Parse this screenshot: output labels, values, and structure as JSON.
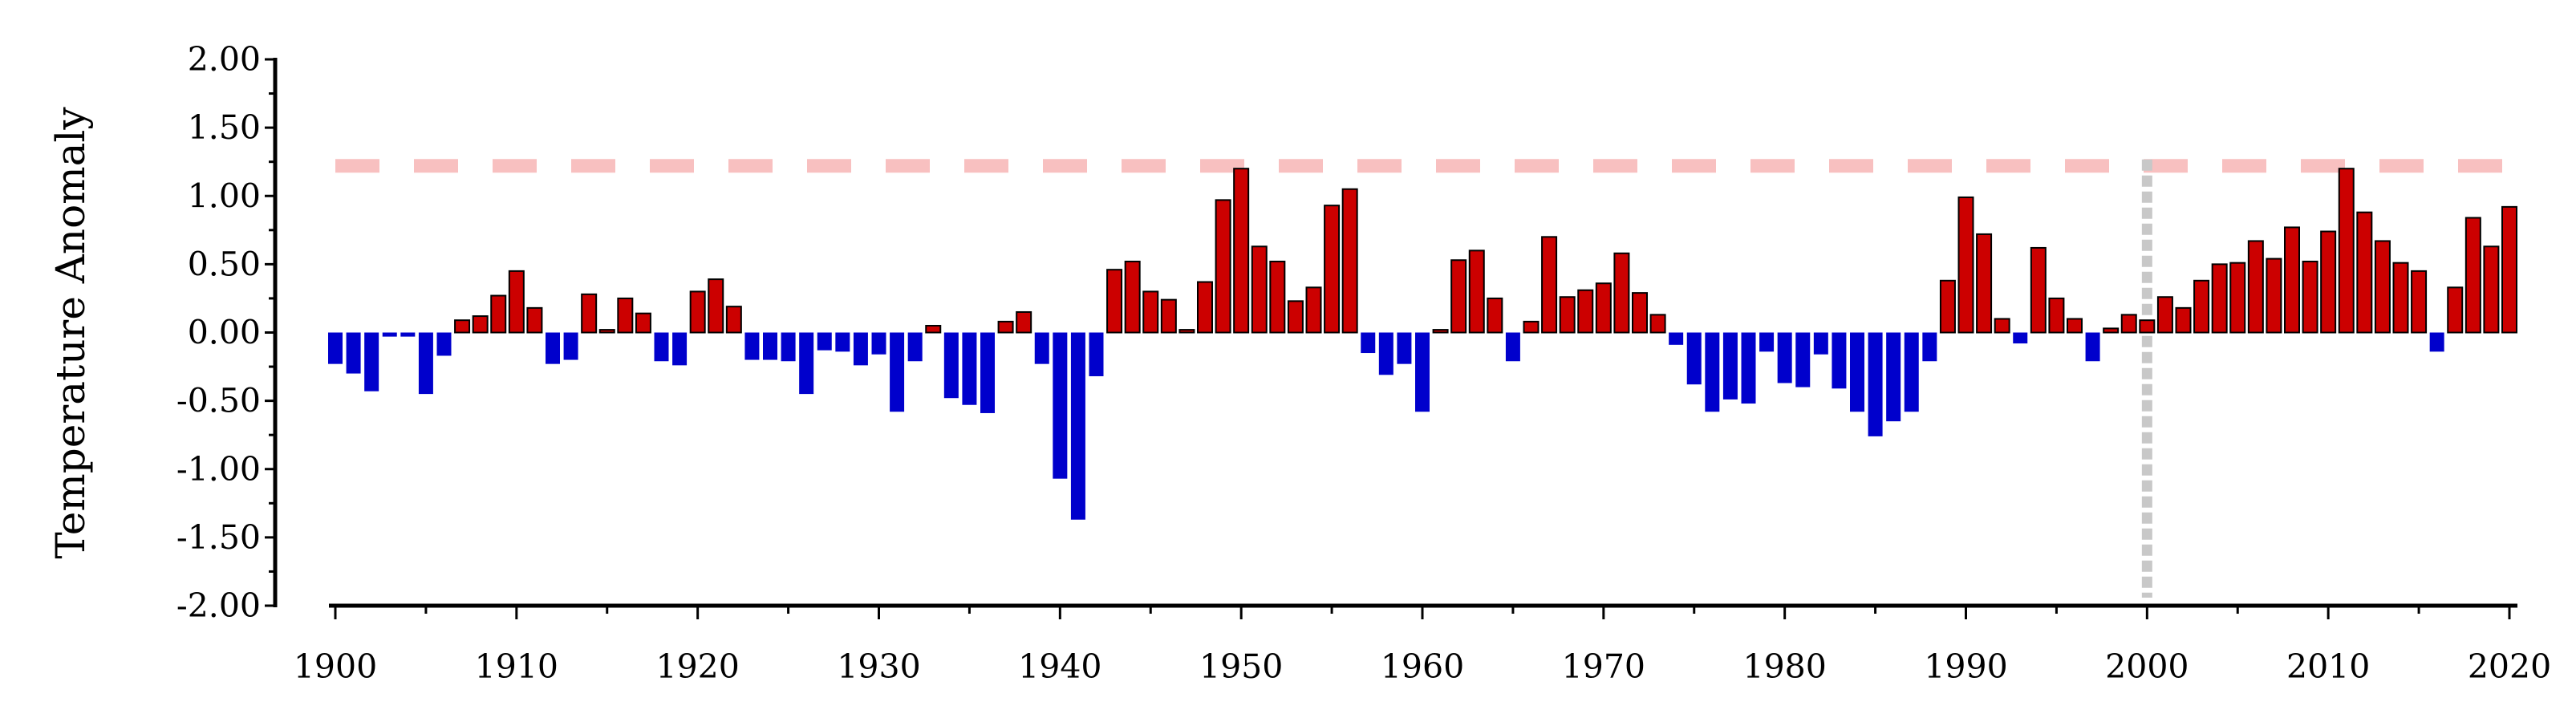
{
  "chart_data": {
    "type": "bar",
    "ylabel": "Temperature Anomaly",
    "xlabel": "",
    "xlim": [
      1900,
      2020
    ],
    "ylim": [
      -2.0,
      2.0
    ],
    "yticks": [
      "-2.00",
      "-1.50",
      "-1.00",
      "-0.50",
      "0.00",
      "0.50",
      "1.00",
      "1.50",
      "2.00"
    ],
    "xticks": [
      "1900",
      "1910",
      "1920",
      "1930",
      "1940",
      "1950",
      "1960",
      "1970",
      "1980",
      "1990",
      "2000",
      "2010",
      "2020"
    ],
    "colors": {
      "positive": "#cc0000",
      "negative": "#0000cc",
      "threshold_line": "#f8c0c0",
      "marker_line": "#c8c8c8"
    },
    "reference_lines": {
      "horizontal_y": 1.22,
      "vertical_x": 2000
    },
    "x": [
      1900,
      1901,
      1902,
      1903,
      1904,
      1905,
      1906,
      1907,
      1908,
      1909,
      1910,
      1911,
      1912,
      1913,
      1914,
      1915,
      1916,
      1917,
      1918,
      1919,
      1920,
      1921,
      1922,
      1923,
      1924,
      1925,
      1926,
      1927,
      1928,
      1929,
      1930,
      1931,
      1932,
      1933,
      1934,
      1935,
      1936,
      1937,
      1938,
      1939,
      1940,
      1941,
      1942,
      1943,
      1944,
      1945,
      1946,
      1947,
      1948,
      1949,
      1950,
      1951,
      1952,
      1953,
      1954,
      1955,
      1956,
      1957,
      1958,
      1959,
      1960,
      1961,
      1962,
      1963,
      1964,
      1965,
      1966,
      1967,
      1968,
      1969,
      1970,
      1971,
      1972,
      1973,
      1974,
      1975,
      1976,
      1977,
      1978,
      1979,
      1980,
      1981,
      1982,
      1983,
      1984,
      1985,
      1986,
      1987,
      1988,
      1989,
      1990,
      1991,
      1992,
      1993,
      1994,
      1995,
      1996,
      1997,
      1998,
      1999,
      2000,
      2001,
      2002,
      2003,
      2004,
      2005,
      2006,
      2007,
      2008,
      2009,
      2010,
      2011,
      2012,
      2013,
      2014,
      2015,
      2016,
      2017,
      2018,
      2019,
      2020
    ],
    "values": [
      -0.23,
      -0.3,
      -0.43,
      -0.03,
      -0.03,
      -0.45,
      -0.17,
      0.09,
      0.12,
      0.27,
      0.45,
      0.18,
      -0.23,
      -0.2,
      0.28,
      0.02,
      0.25,
      0.14,
      -0.21,
      -0.24,
      0.3,
      0.39,
      0.19,
      -0.2,
      -0.2,
      -0.21,
      -0.45,
      -0.13,
      -0.14,
      -0.24,
      -0.16,
      -0.58,
      -0.21,
      0.05,
      -0.48,
      -0.53,
      -0.59,
      0.08,
      0.15,
      -0.23,
      -1.07,
      -1.37,
      -0.32,
      0.46,
      0.52,
      0.3,
      0.24,
      0.02,
      0.37,
      0.97,
      1.2,
      0.63,
      0.52,
      0.23,
      0.33,
      0.93,
      1.05,
      -0.15,
      -0.31,
      -0.23,
      -0.58,
      0.02,
      0.53,
      0.6,
      0.25,
      -0.21,
      0.08,
      0.7,
      0.26,
      0.31,
      0.36,
      0.58,
      0.29,
      0.13,
      -0.09,
      -0.38,
      -0.58,
      -0.49,
      -0.52,
      -0.14,
      -0.37,
      -0.4,
      -0.16,
      -0.41,
      -0.58,
      -0.76,
      -0.65,
      -0.58,
      -0.21,
      0.38,
      0.99,
      0.72,
      0.1,
      -0.08,
      0.62,
      0.25,
      0.1,
      -0.21,
      0.03,
      0.13,
      0.09,
      0.26,
      0.18,
      0.38,
      0.5,
      0.51,
      0.67,
      0.54,
      0.77,
      0.52,
      0.74,
      1.2,
      0.88,
      0.67,
      0.51,
      0.45,
      -0.14,
      0.33,
      0.84,
      0.63,
      0.92
    ]
  }
}
